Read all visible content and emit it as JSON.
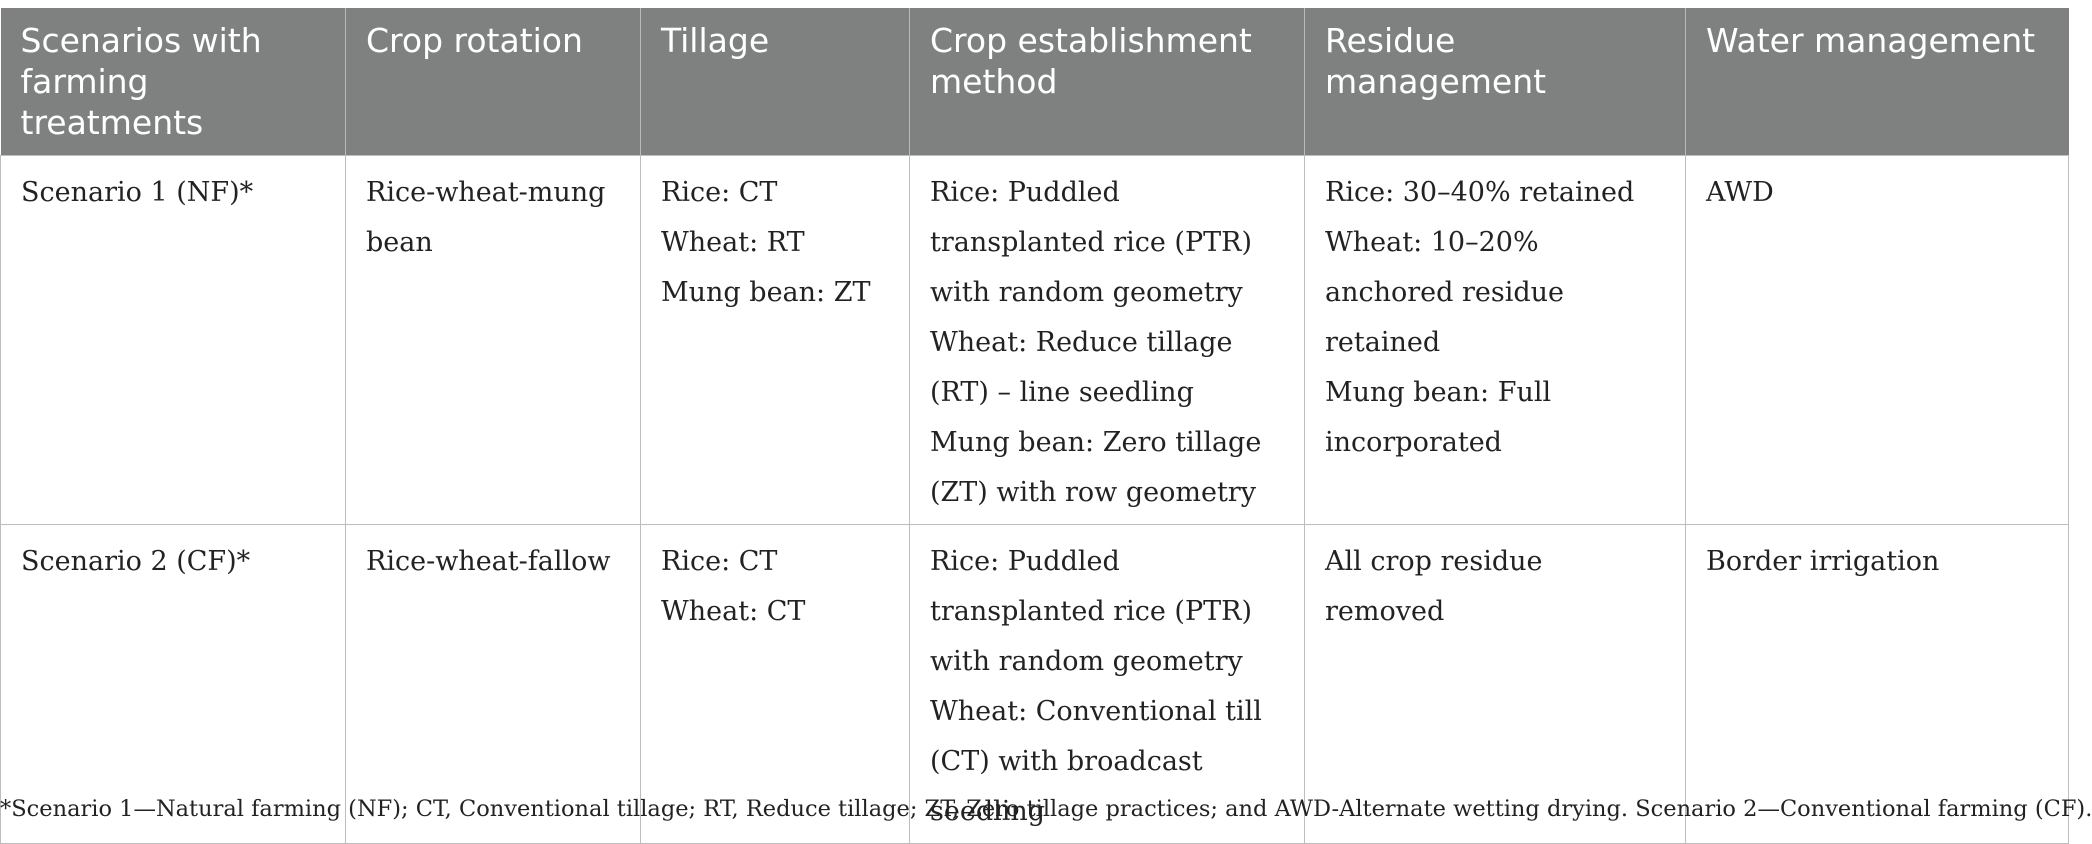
{
  "table": {
    "headers": [
      "Scenarios with farming treatments",
      "Crop rotation",
      "Tillage",
      "Crop establishment method",
      "Residue management",
      "Water management"
    ],
    "rows": [
      {
        "scenario": "Scenario 1 (NF)*",
        "crop_rotation": "Rice-wheat-mung bean",
        "tillage": [
          "Rice: CT",
          "Wheat: RT",
          "Mung bean: ZT"
        ],
        "crop_establishment": [
          "Rice: Puddled transplanted rice (PTR) with random geometry",
          "Wheat: Reduce tillage (RT) – line seedling",
          "Mung bean: Zero tillage (ZT) with row geometry"
        ],
        "residue": [
          "Rice: 30–40% retained",
          "Wheat: 10–20% anchored residue retained",
          "Mung bean: Full incorporated"
        ],
        "water": "AWD"
      },
      {
        "scenario": "Scenario 2 (CF)*",
        "crop_rotation": "Rice-wheat-fallow",
        "tillage": [
          "Rice: CT",
          "Wheat: CT"
        ],
        "crop_establishment": [
          "Rice: Puddled transplanted rice (PTR) with random geometry",
          "Wheat: Conventional till (CT) with broadcast seedling"
        ],
        "residue": [
          "All crop residue removed"
        ],
        "water": "Border irrigation"
      }
    ]
  },
  "footnote": "*Scenario 1—Natural farming (NF); CT, Conventional tillage; RT, Reduce tillage; ZT, Zero tillage practices; and AWD-Alternate wetting drying. Scenario 2—Conventional farming (CF).",
  "colors": {
    "header_bg": "#7f8180",
    "header_text": "#ffffff",
    "border": "#bdbdbd",
    "body_text": "#222222"
  }
}
